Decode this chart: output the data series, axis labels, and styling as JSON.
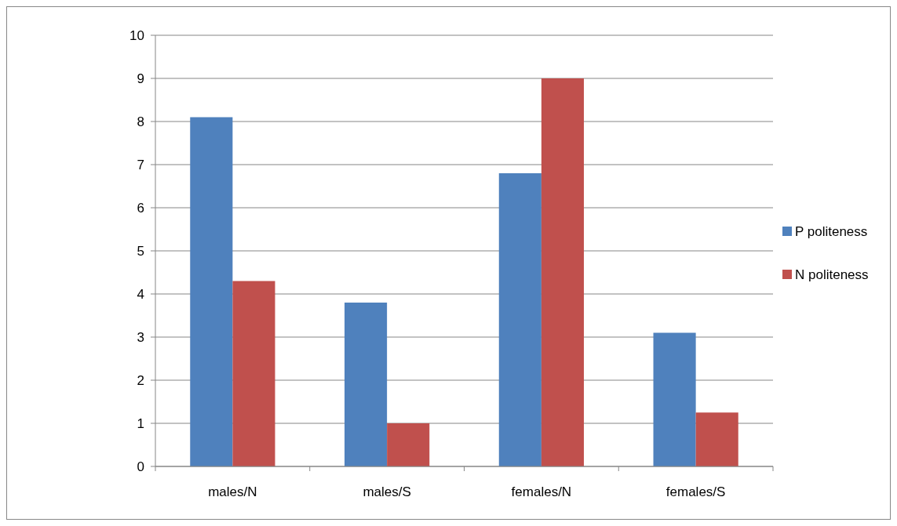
{
  "chart_data": {
    "type": "bar",
    "categories": [
      "males/N",
      "males/S",
      "females/N",
      "females/S"
    ],
    "series": [
      {
        "name": "P politeness",
        "color": "#4f81bd",
        "values": [
          8.1,
          3.8,
          6.8,
          3.1
        ]
      },
      {
        "name": "N politeness",
        "color": "#c0504d",
        "values": [
          4.3,
          1.0,
          9.0,
          1.25
        ]
      }
    ],
    "ylim": [
      0,
      10
    ],
    "yticks": [
      0,
      1,
      2,
      3,
      4,
      5,
      6,
      7,
      8,
      9,
      10
    ],
    "grid": "y",
    "legend": "right"
  }
}
